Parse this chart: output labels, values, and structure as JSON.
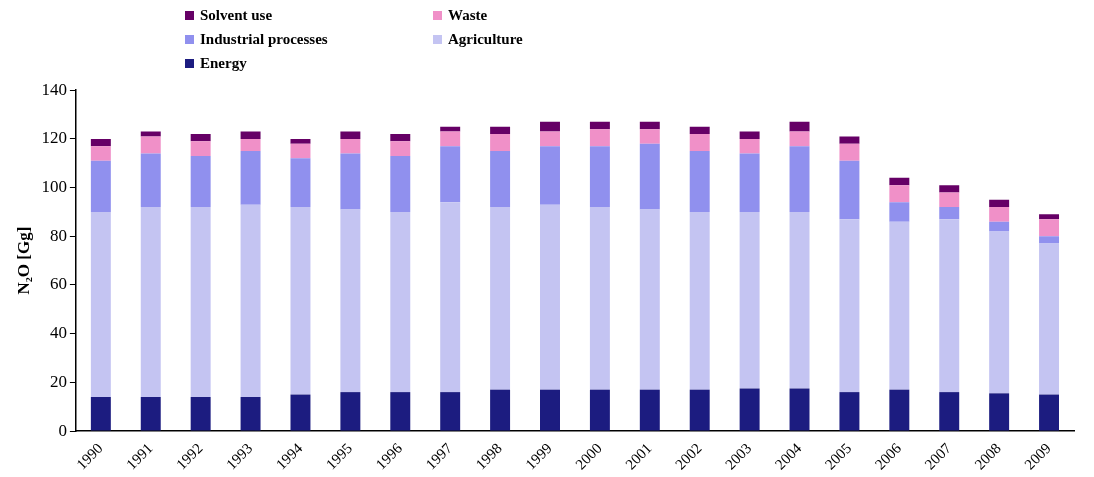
{
  "chart_data": {
    "type": "bar",
    "ylabel": "N₂O [Gg]",
    "stacked": true,
    "legend": "top",
    "grid": false,
    "categories": [
      "1990",
      "1991",
      "1992",
      "1993",
      "1994",
      "1995",
      "1996",
      "1997",
      "1998",
      "1999",
      "2000",
      "2001",
      "2002",
      "2003",
      "2004",
      "2005",
      "2006",
      "2007",
      "2008",
      "2009"
    ],
    "ylim": [
      0,
      140
    ],
    "yticks": [
      0,
      20,
      40,
      60,
      80,
      100,
      120,
      140
    ],
    "series": [
      {
        "name": "Energy",
        "color": "#1c1c80",
        "values": [
          14,
          14,
          14,
          14,
          15,
          16,
          16,
          16,
          17,
          17,
          17,
          17,
          17,
          17.5,
          17.5,
          16,
          17,
          16,
          15.5,
          15
        ]
      },
      {
        "name": "Agriculture",
        "color": "#c4c4f2",
        "values": [
          76,
          78,
          78,
          79,
          77,
          75,
          74,
          78,
          75,
          76,
          75,
          74,
          73,
          72.5,
          72.5,
          71,
          69,
          71,
          66.5,
          62
        ]
      },
      {
        "name": "Industrial processes",
        "color": "#9090ee",
        "values": [
          21,
          22,
          21,
          22,
          20,
          23,
          23,
          23,
          23,
          24,
          25,
          27,
          25,
          24,
          27,
          24,
          8,
          5,
          4,
          3
        ]
      },
      {
        "name": "Waste",
        "color": "#f090c8",
        "values": [
          6,
          7,
          6,
          5,
          6,
          6,
          6,
          6,
          7,
          6,
          7,
          6,
          7,
          6,
          6,
          7,
          7,
          6,
          6,
          7
        ]
      },
      {
        "name": "Solvent use",
        "color": "#660066",
        "values": [
          3,
          2,
          3,
          3,
          2,
          3,
          3,
          2,
          3,
          4,
          3,
          3,
          3,
          3,
          4,
          3,
          3,
          3,
          3,
          2
        ]
      }
    ]
  }
}
